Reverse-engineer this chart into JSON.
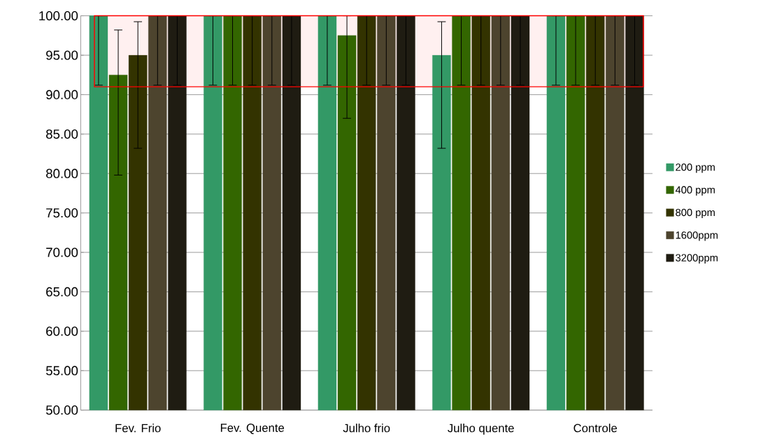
{
  "chart_data": {
    "type": "bar",
    "categories": [
      "Fev. Frio",
      "Fev. Quente",
      "Julho frio",
      "Julho quente",
      "Controle"
    ],
    "series": [
      {
        "name": "200 ppm",
        "color": "#339966",
        "values": [
          100,
          100,
          100,
          95,
          100
        ],
        "errors": [
          [
            91.2,
            100
          ],
          [
            91.2,
            100
          ],
          [
            91.2,
            100
          ],
          [
            83.2,
            99.25
          ],
          [
            91.2,
            100
          ]
        ]
      },
      {
        "name": "400 ppm",
        "color": "#336600",
        "values": [
          92.5,
          100,
          97.5,
          100,
          100
        ],
        "errors": [
          [
            79.8,
            98.2
          ],
          [
            91.2,
            100
          ],
          [
            87.0,
            100
          ],
          [
            91.2,
            100
          ],
          [
            91.2,
            100
          ]
        ]
      },
      {
        "name": "800 ppm",
        "color": "#333300",
        "values": [
          95,
          100,
          100,
          100,
          100
        ],
        "errors": [
          [
            83.2,
            99.25
          ],
          [
            91.2,
            100
          ],
          [
            91.2,
            100
          ],
          [
            91.2,
            100
          ],
          [
            91.2,
            100
          ]
        ]
      },
      {
        "name": "1600ppm",
        "color": "#4d442e",
        "values": [
          100,
          100,
          100,
          100,
          100
        ],
        "errors": [
          [
            91.2,
            100
          ],
          [
            91.2,
            100
          ],
          [
            91.2,
            100
          ],
          [
            91.2,
            100
          ],
          [
            91.2,
            100
          ]
        ]
      },
      {
        "name": "3200ppm",
        "color": "#1f1c12",
        "values": [
          100,
          100,
          100,
          100,
          100
        ],
        "errors": [
          [
            91.2,
            100
          ],
          [
            91.2,
            100
          ],
          [
            91.2,
            100
          ],
          [
            91.2,
            100
          ],
          [
            91.2,
            100
          ]
        ]
      }
    ],
    "ylim": [
      50,
      100
    ],
    "yticks": [
      {
        "value": 50,
        "label": "50.00"
      },
      {
        "value": 55,
        "label": "55.00"
      },
      {
        "value": 60,
        "label": "60.00"
      },
      {
        "value": 65,
        "label": "65.00"
      },
      {
        "value": 70,
        "label": "70.00"
      },
      {
        "value": 75,
        "label": "75.00"
      },
      {
        "value": 80,
        "label": "80.00"
      },
      {
        "value": 85,
        "label": "85.00"
      },
      {
        "value": 90,
        "label": "90.00"
      },
      {
        "value": 95,
        "label": "95.00"
      },
      {
        "value": 100,
        "label": "100.00"
      }
    ],
    "bands": [
      {
        "axis": "y",
        "from": 91,
        "to": 100
      }
    ],
    "grid": "y",
    "legend": "right"
  }
}
